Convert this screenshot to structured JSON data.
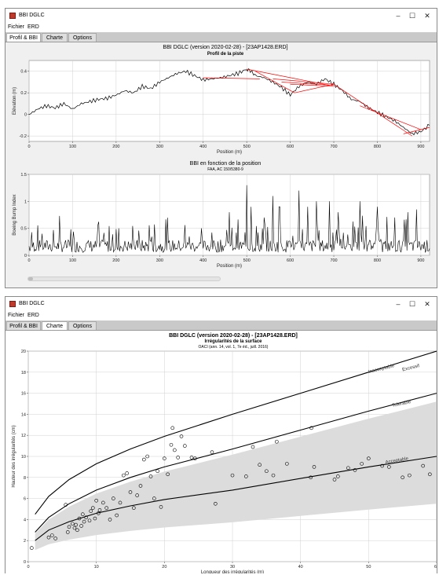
{
  "window1": {
    "title": "BBI DGLC",
    "menu": [
      "Fichier",
      "ERD"
    ],
    "tabs": [
      "Profil & BBI",
      "Charte",
      "Options"
    ],
    "active_tab": 0,
    "chart_title": "BBI DGLC (version 2020-02-28) - [23AP1428.ERD]",
    "chart_subtitle": "Profil de la piste",
    "chart2_title": "BBI en fonction de la position",
    "chart2_subtitle": "FAA, AC 150/5380-9"
  },
  "window2": {
    "title": "BBI DGLC",
    "menu": [
      "Fichier",
      "ERD"
    ],
    "tabs": [
      "Profil & BBI",
      "Charte",
      "Options"
    ],
    "active_tab": 1,
    "chart_title": "BBI DGLC (version 2020-02-28) - [23AP1428.ERD]",
    "chart_subtitle": "Irrégularités de la surface",
    "chart_subsubtitle": "OACI (ann. 14, vol. 1, 7e éd., juill. 2016)"
  },
  "window_controls": {
    "minimize": "–",
    "maximize": "☐",
    "close": "✕"
  },
  "icons": {
    "app": "app-icon"
  },
  "chart_data": [
    {
      "type": "line",
      "title": "Profil de la piste",
      "xlabel": "Position (m)",
      "ylabel": "Elévation (m)",
      "xlim": [
        0,
        920
      ],
      "ylim": [
        -0.25,
        0.5
      ],
      "xticks": [
        0,
        100,
        200,
        300,
        400,
        500,
        600,
        700,
        800,
        900
      ],
      "yticks": [
        -0.2,
        0,
        0.2,
        0.4
      ],
      "series": [
        {
          "color": "#000000",
          "x": [
            0,
            20,
            40,
            60,
            80,
            100,
            120,
            140,
            160,
            180,
            200,
            220,
            240,
            260,
            280,
            300,
            320,
            340,
            360,
            380,
            400,
            420,
            440,
            460,
            480,
            500,
            510,
            520,
            540,
            560,
            580,
            600,
            620,
            640,
            660,
            680,
            700,
            720,
            740,
            760,
            780,
            800,
            820,
            840,
            860,
            880,
            900,
            920
          ],
          "y": [
            0.0,
            0.05,
            0.08,
            0.06,
            0.1,
            0.05,
            0.1,
            0.12,
            0.14,
            0.15,
            0.18,
            0.22,
            0.2,
            0.26,
            0.24,
            0.3,
            0.34,
            0.38,
            0.4,
            0.36,
            0.32,
            0.33,
            0.34,
            0.36,
            0.38,
            0.42,
            0.4,
            0.36,
            0.34,
            0.3,
            0.25,
            0.18,
            0.26,
            0.3,
            0.28,
            0.33,
            0.28,
            0.22,
            0.14,
            0.12,
            0.06,
            0.02,
            -0.02,
            -0.06,
            -0.12,
            -0.18,
            -0.16,
            -0.1
          ]
        },
        {
          "color": "#ff0000",
          "segments": [
            [
              400,
              0.34,
              530,
              0.33
            ],
            [
              500,
              0.42,
              690,
              0.27
            ],
            [
              520,
              0.4,
              610,
              0.2
            ],
            [
              560,
              0.33,
              700,
              0.28
            ],
            [
              580,
              0.3,
              700,
              0.27
            ],
            [
              600,
              0.28,
              700,
              0.26
            ],
            [
              610,
              0.2,
              700,
              0.28
            ],
            [
              700,
              0.28,
              880,
              -0.2
            ],
            [
              760,
              0.08,
              900,
              -0.14
            ],
            [
              860,
              -0.18,
              920,
              -0.12
            ]
          ]
        }
      ]
    },
    {
      "type": "line",
      "title": "BBI en fonction de la position",
      "xlabel": "Position (m)",
      "ylabel": "Boeing Bump Index",
      "xlim": [
        0,
        920
      ],
      "ylim": [
        0,
        1.5
      ],
      "xticks": [
        0,
        100,
        200,
        300,
        400,
        500,
        600,
        700,
        800,
        900
      ],
      "yticks": [
        0,
        0.5,
        1,
        1.5
      ],
      "series": [
        {
          "color": "#000000",
          "mean_level": 0.18,
          "peaks": [
            [
              460,
              0.8
            ],
            [
              500,
              1.3
            ],
            [
              510,
              0.9
            ],
            [
              540,
              0.7
            ],
            [
              560,
              1.1
            ],
            [
              575,
              0.9
            ],
            [
              620,
              1.2
            ],
            [
              640,
              0.9
            ],
            [
              660,
              1.0
            ],
            [
              690,
              1.0
            ],
            [
              710,
              0.8
            ],
            [
              760,
              1.0
            ],
            [
              800,
              0.9
            ],
            [
              840,
              0.7
            ],
            [
              870,
              0.8
            ],
            [
              890,
              0.85
            ]
          ]
        }
      ]
    },
    {
      "type": "scatter",
      "title": "Irrégularités de la surface",
      "xlabel": "Longueur des irrégularités (m)",
      "ylabel": "Hauteur des irrégularités (cm)",
      "xlim": [
        0,
        60
      ],
      "ylim": [
        0,
        20
      ],
      "xticks": [
        0,
        10,
        20,
        30,
        40,
        50,
        60
      ],
      "yticks": [
        0,
        2,
        4,
        6,
        8,
        10,
        12,
        14,
        16,
        18,
        20
      ],
      "zone_labels": [
        "Inacceptable",
        "Excessif",
        "Tolerable",
        "Acceptable"
      ],
      "curves": [
        {
          "name": "Inacceptable",
          "x": [
            1,
            3,
            6,
            10,
            15,
            20,
            30,
            40,
            50,
            60
          ],
          "y": [
            4.5,
            6.2,
            7.8,
            9.3,
            10.7,
            11.9,
            14.0,
            16.0,
            18.0,
            20.0
          ]
        },
        {
          "name": "Tolerable",
          "x": [
            1,
            3,
            6,
            10,
            15,
            20,
            30,
            40,
            50,
            60
          ],
          "y": [
            2.8,
            4.2,
            5.5,
            6.8,
            8.0,
            9.0,
            10.7,
            12.5,
            14.3,
            16.0
          ]
        },
        {
          "name": "Acceptable",
          "x": [
            1,
            3,
            6,
            10,
            15,
            20,
            30,
            40,
            50,
            60
          ],
          "y": [
            2.0,
            3.0,
            3.8,
            4.6,
            5.3,
            5.9,
            6.8,
            7.9,
            9.0,
            10.0
          ]
        }
      ],
      "points": [
        [
          0.5,
          1.3
        ],
        [
          3,
          2.3
        ],
        [
          3.5,
          2.5
        ],
        [
          4,
          2.2
        ],
        [
          5.5,
          5.4
        ],
        [
          5.8,
          2.8
        ],
        [
          6,
          3.3
        ],
        [
          6.5,
          3.6
        ],
        [
          6.8,
          3.2
        ],
        [
          7,
          3.5
        ],
        [
          7.2,
          3.0
        ],
        [
          7.5,
          4.1
        ],
        [
          7.8,
          3.4
        ],
        [
          8,
          4.5
        ],
        [
          8.2,
          3.8
        ],
        [
          8.5,
          4.2
        ],
        [
          9,
          3.9
        ],
        [
          9.2,
          4.8
        ],
        [
          9.5,
          5.1
        ],
        [
          9.8,
          4.1
        ],
        [
          10,
          5.8
        ],
        [
          10.3,
          4.6
        ],
        [
          10.5,
          4.9
        ],
        [
          11,
          5.6
        ],
        [
          11.5,
          5.1
        ],
        [
          12,
          4.0
        ],
        [
          12.5,
          6.0
        ],
        [
          13,
          4.4
        ],
        [
          13.5,
          5.6
        ],
        [
          14,
          8.2
        ],
        [
          14.5,
          8.4
        ],
        [
          15,
          6.6
        ],
        [
          15.5,
          5.1
        ],
        [
          16,
          6.3
        ],
        [
          16.5,
          7.2
        ],
        [
          17,
          9.7
        ],
        [
          17.5,
          10.0
        ],
        [
          18,
          8.1
        ],
        [
          18.5,
          6.0
        ],
        [
          19,
          8.6
        ],
        [
          19.5,
          5.2
        ],
        [
          20,
          9.8
        ],
        [
          20.5,
          8.3
        ],
        [
          21,
          11.1
        ],
        [
          21.2,
          12.7
        ],
        [
          21.5,
          10.6
        ],
        [
          22,
          9.9
        ],
        [
          22.5,
          11.9
        ],
        [
          23,
          11.0
        ],
        [
          24,
          9.9
        ],
        [
          24.5,
          9.8
        ],
        [
          27,
          10.4
        ],
        [
          27.5,
          5.5
        ],
        [
          30,
          8.2
        ],
        [
          32,
          8.1
        ],
        [
          33,
          10.9
        ],
        [
          34,
          9.2
        ],
        [
          35,
          8.6
        ],
        [
          36,
          8.2
        ],
        [
          36.5,
          11.4
        ],
        [
          38,
          9.3
        ],
        [
          41.5,
          8.0
        ],
        [
          41.6,
          12.7
        ],
        [
          42,
          9.0
        ],
        [
          45,
          7.8
        ],
        [
          45.5,
          8.1
        ],
        [
          47,
          8.9
        ],
        [
          48,
          8.7
        ],
        [
          49,
          9.3
        ],
        [
          50,
          9.8
        ],
        [
          52,
          9.1
        ],
        [
          53,
          9.0
        ],
        [
          55,
          8.0
        ],
        [
          56,
          8.2
        ],
        [
          58,
          9.1
        ],
        [
          59,
          8.3
        ]
      ]
    }
  ]
}
